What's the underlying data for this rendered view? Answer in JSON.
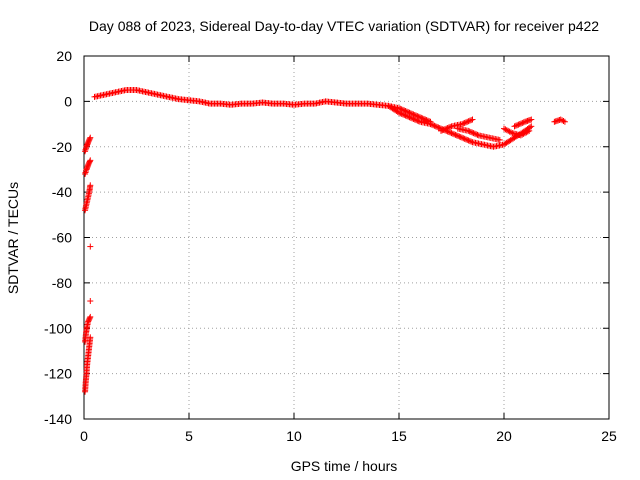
{
  "chart_data": {
    "type": "scatter",
    "title": "Day 088 of 2023, Sidereal Day-to-day VTEC variation (SDTVAR) for receiver p422",
    "xlabel": "GPS time / hours",
    "ylabel": "SDTVAR / TECUs",
    "xlim": [
      0,
      25
    ],
    "ylim": [
      -140,
      20
    ],
    "xticks": [
      0,
      5,
      10,
      15,
      20,
      25
    ],
    "yticks": [
      -140,
      -120,
      -100,
      -80,
      -60,
      -40,
      -20,
      0,
      20
    ],
    "grid": true,
    "marker": "+",
    "series": [
      {
        "name": "SDTVAR",
        "color": "#ff0000",
        "segments": [
          [
            [
              0.05,
              -128
            ],
            [
              0.08,
              -124
            ],
            [
              0.12,
              -120
            ],
            [
              0.15,
              -116
            ],
            [
              0.2,
              -112
            ],
            [
              0.25,
              -108
            ],
            [
              0.3,
              -104
            ]
          ],
          [
            [
              0.05,
              -106
            ],
            [
              0.1,
              -102
            ],
            [
              0.15,
              -99
            ],
            [
              0.2,
              -97
            ],
            [
              0.3,
              -95
            ]
          ],
          [
            [
              0.05,
              -48
            ],
            [
              0.1,
              -46
            ],
            [
              0.15,
              -44
            ],
            [
              0.2,
              -42
            ],
            [
              0.25,
              -40
            ],
            [
              0.3,
              -37
            ]
          ],
          [
            [
              0.05,
              -32
            ],
            [
              0.12,
              -30
            ],
            [
              0.2,
              -28
            ],
            [
              0.3,
              -26
            ]
          ],
          [
            [
              0.05,
              -22
            ],
            [
              0.12,
              -20
            ],
            [
              0.2,
              -18
            ],
            [
              0.3,
              -16
            ]
          ],
          [
            [
              0.5,
              2
            ],
            [
              1.0,
              3
            ],
            [
              1.5,
              4
            ],
            [
              2.0,
              5
            ],
            [
              2.5,
              5
            ],
            [
              3.0,
              4
            ],
            [
              3.5,
              3
            ],
            [
              4.0,
              2
            ],
            [
              4.5,
              1
            ],
            [
              5.0,
              0.5
            ],
            [
              5.5,
              0
            ],
            [
              6.0,
              -1
            ],
            [
              6.5,
              -1
            ],
            [
              7.0,
              -1.5
            ],
            [
              7.5,
              -1
            ],
            [
              8.0,
              -1
            ],
            [
              8.5,
              -0.5
            ],
            [
              9.0,
              -1
            ],
            [
              9.5,
              -1
            ],
            [
              10.0,
              -1.5
            ],
            [
              10.5,
              -1
            ],
            [
              11.0,
              -1
            ],
            [
              11.5,
              0
            ],
            [
              12.0,
              -0.5
            ],
            [
              12.5,
              -1
            ],
            [
              13.0,
              -1
            ],
            [
              13.5,
              -1
            ],
            [
              14.0,
              -1.5
            ],
            [
              14.5,
              -2
            ],
            [
              15.0,
              -5
            ],
            [
              15.5,
              -7
            ],
            [
              16.0,
              -9
            ],
            [
              16.5,
              -10
            ],
            [
              17.0,
              -12
            ],
            [
              17.5,
              -14
            ],
            [
              18.0,
              -16
            ],
            [
              18.5,
              -18
            ],
            [
              19.0,
              -19
            ],
            [
              19.5,
              -20
            ],
            [
              20.0,
              -19
            ],
            [
              20.5,
              -16
            ],
            [
              21.0,
              -13
            ],
            [
              21.3,
              -11
            ]
          ],
          [
            [
              14.5,
              -2
            ],
            [
              15.0,
              -3
            ],
            [
              15.5,
              -5
            ],
            [
              16.0,
              -7
            ],
            [
              16.5,
              -9
            ]
          ],
          [
            [
              17.0,
              -13
            ],
            [
              17.5,
              -11
            ],
            [
              18.0,
              -10
            ],
            [
              18.5,
              -8
            ]
          ],
          [
            [
              17.8,
              -12
            ],
            [
              18.3,
              -13
            ],
            [
              18.8,
              -15
            ],
            [
              19.3,
              -16
            ],
            [
              19.8,
              -17
            ]
          ],
          [
            [
              20.0,
              -12
            ],
            [
              20.4,
              -14
            ],
            [
              20.8,
              -15
            ],
            [
              21.2,
              -13
            ]
          ],
          [
            [
              20.5,
              -11
            ],
            [
              21.0,
              -9
            ],
            [
              21.3,
              -8
            ]
          ],
          [
            [
              22.4,
              -9
            ],
            [
              22.7,
              -8
            ],
            [
              22.9,
              -9
            ]
          ]
        ],
        "outliers": [
          [
            0.3,
            -64
          ],
          [
            0.3,
            -88
          ]
        ]
      }
    ]
  }
}
